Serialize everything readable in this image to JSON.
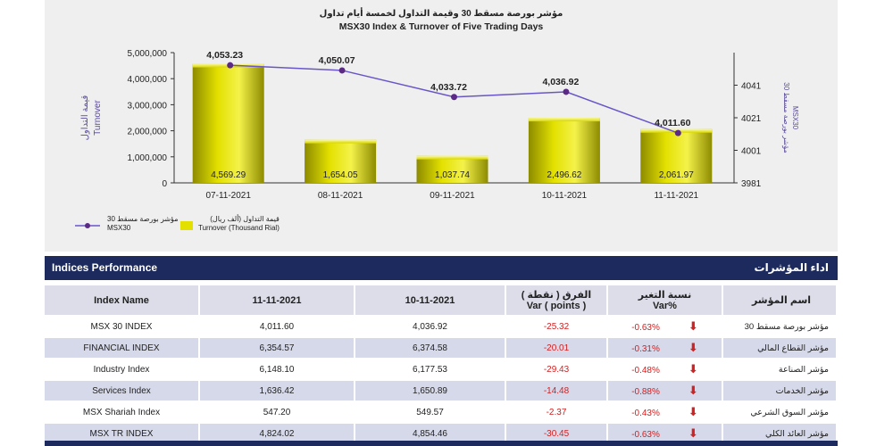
{
  "chart_data": {
    "type": "bar",
    "title_ar": "مؤشر بورصة مسقط 30 وقيمة التداول لخمسة أيام تداول",
    "title": "MSX30 Index & Turnover of Five Trading Days",
    "categories": [
      "07-11-2021",
      "08-11-2021",
      "09-11-2021",
      "10-11-2021",
      "11-11-2021"
    ],
    "series": [
      {
        "name": "Turnover (Thousand Rial)",
        "name_ar": "قيمة التداول (ألف ريال)",
        "type": "bar",
        "axis": "left",
        "values": [
          4569.29,
          1654.05,
          1037.74,
          2496.62,
          2061.97
        ],
        "labels": [
          "4,569.29",
          "1,654.05",
          "1,037.74",
          "2,496.62",
          "2,061.97"
        ]
      },
      {
        "name": "MSX30",
        "name_ar": "مؤشر بورصة مسقط 30",
        "type": "line",
        "axis": "right",
        "values": [
          4053.23,
          4050.07,
          4033.72,
          4036.92,
          4011.6
        ],
        "labels": [
          "4,053.23",
          "4,050.07",
          "4,033.72",
          "4,036.92",
          "4,011.60"
        ]
      }
    ],
    "y_left": {
      "label_ar": "قيمة التداول",
      "label": "Turnover",
      "ticks": [
        "5,000,000",
        "4,000,000",
        "3,000,000",
        "2,000,000",
        "1,000,000",
        "0"
      ],
      "range": [
        0,
        5000000
      ]
    },
    "y_right": {
      "label_ar": "مؤشر بورصة مسقط 30",
      "label": "MSX30",
      "ticks": [
        "4041",
        "4021",
        "4001",
        "3981"
      ],
      "range": [
        3981,
        4061
      ]
    },
    "colors": {
      "bar": "#e3e000",
      "bar_dark": "#8d8b00",
      "line": "#6a55c8",
      "marker": "#5b2a86"
    }
  },
  "legend": {
    "line_ar": "مؤشر بورصة مسقط 30",
    "line_en": "MSX30",
    "bar_ar": "قيمة التداول (ألف ريال)",
    "bar_en": "Turnover (Thousand Rial)"
  },
  "section": {
    "title": "Indices Performance",
    "title_ar": "اداء المؤشرات"
  },
  "table": {
    "headers": {
      "name": "Index Name",
      "d1": "11-11-2021",
      "d2": "10-11-2021",
      "var_ar": "الفرق ( نقطة )",
      "var_en": "Var ( points )",
      "pct_ar": "نسبة التغير",
      "pct_en": "Var%",
      "name_ar": "اسم المؤشر"
    },
    "rows": [
      {
        "name": "MSX 30 INDEX",
        "d1": "4,011.60",
        "d2": "4,036.92",
        "var": "-25.32",
        "pct": "-0.63%",
        "arrow": "down",
        "name_ar": "مؤشر بورصة مسقط 30"
      },
      {
        "name": "FINANCIAL INDEX",
        "d1": "6,354.57",
        "d2": "6,374.58",
        "var": "-20.01",
        "pct": "-0.31%",
        "arrow": "down",
        "name_ar": "مؤشر القطاع المالي"
      },
      {
        "name": "Industry Index",
        "d1": "6,148.10",
        "d2": "6,177.53",
        "var": "-29.43",
        "pct": "-0.48%",
        "arrow": "down",
        "name_ar": "مؤشر الصناعة"
      },
      {
        "name": "Services Index",
        "d1": "1,636.42",
        "d2": "1,650.89",
        "var": "-14.48",
        "pct": "-0.88%",
        "arrow": "down",
        "name_ar": "مؤشر الخدمات"
      },
      {
        "name": "MSX Shariah Index",
        "d1": "547.20",
        "d2": "549.57",
        "var": "-2.37",
        "pct": "-0.43%",
        "arrow": "down",
        "name_ar": "مؤشر السوق الشرعي"
      },
      {
        "name": "MSX TR INDEX",
        "d1": "4,824.02",
        "d2": "4,854.46",
        "var": "-30.45",
        "pct": "-0.63%",
        "arrow": "down",
        "name_ar": "مؤشر العائد الكلي"
      }
    ]
  }
}
